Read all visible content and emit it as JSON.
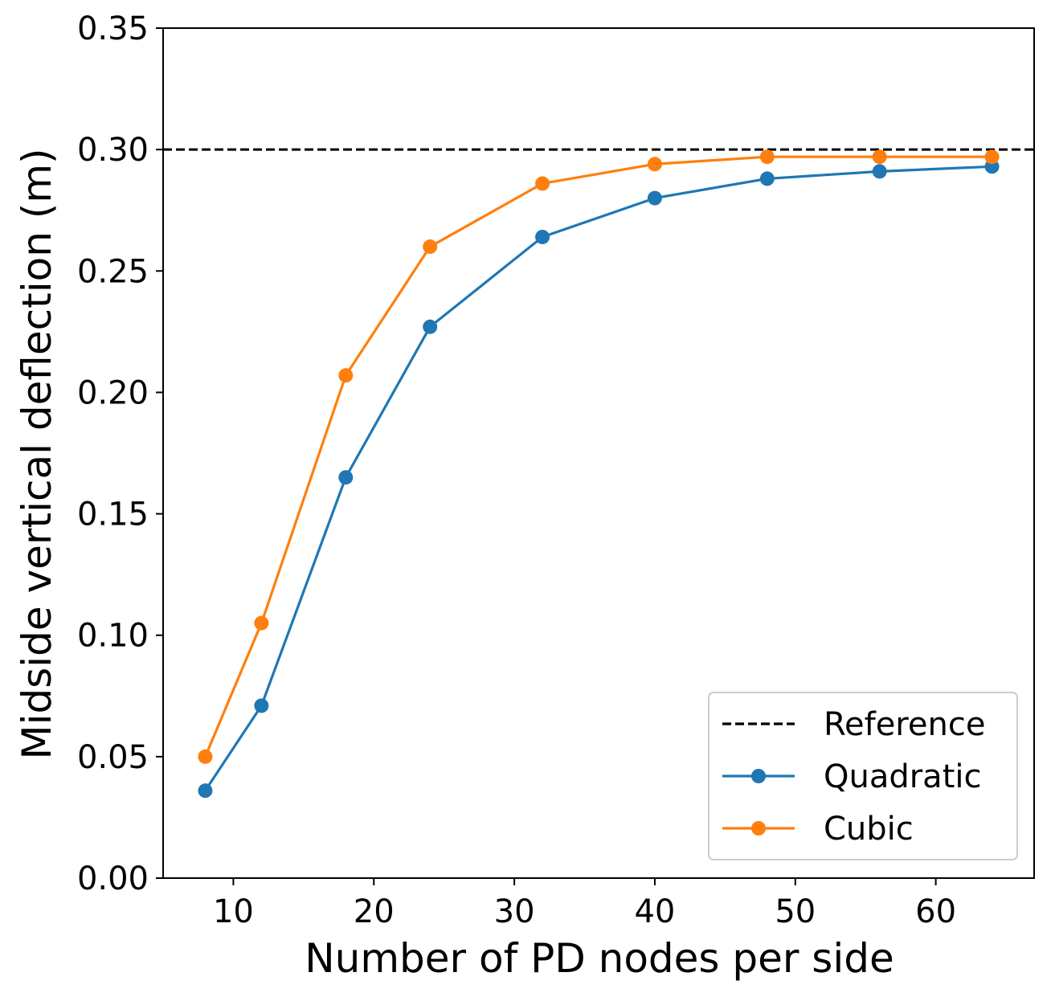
{
  "chart_data": {
    "type": "line",
    "title": "",
    "xlabel": "Number of PD nodes per side",
    "ylabel": "Midside vertical deflection (m)",
    "xlim": [
      5,
      67
    ],
    "ylim": [
      0.0,
      0.35
    ],
    "x_ticks": [
      10,
      20,
      30,
      40,
      50,
      60
    ],
    "x_tick_labels": [
      "10",
      "20",
      "30",
      "40",
      "50",
      "60"
    ],
    "y_ticks": [
      0.0,
      0.05,
      0.1,
      0.15,
      0.2,
      0.25,
      0.3,
      0.35
    ],
    "y_tick_labels": [
      "0.00",
      "0.05",
      "0.10",
      "0.15",
      "0.20",
      "0.25",
      "0.30",
      "0.35"
    ],
    "grid": false,
    "legend_position": "lower-right",
    "reference": {
      "name": "Reference",
      "value": 0.3,
      "color": "#000000",
      "style": "dashed"
    },
    "x": [
      8,
      12,
      18,
      24,
      32,
      40,
      48,
      56,
      64
    ],
    "series": [
      {
        "name": "Quadratic",
        "color": "#1f77b4",
        "values": [
          0.036,
          0.071,
          0.165,
          0.227,
          0.264,
          0.28,
          0.288,
          0.291,
          0.293
        ]
      },
      {
        "name": "Cubic",
        "color": "#ff7f0e",
        "values": [
          0.05,
          0.105,
          0.207,
          0.26,
          0.286,
          0.294,
          0.297,
          0.297,
          0.297
        ]
      }
    ]
  }
}
